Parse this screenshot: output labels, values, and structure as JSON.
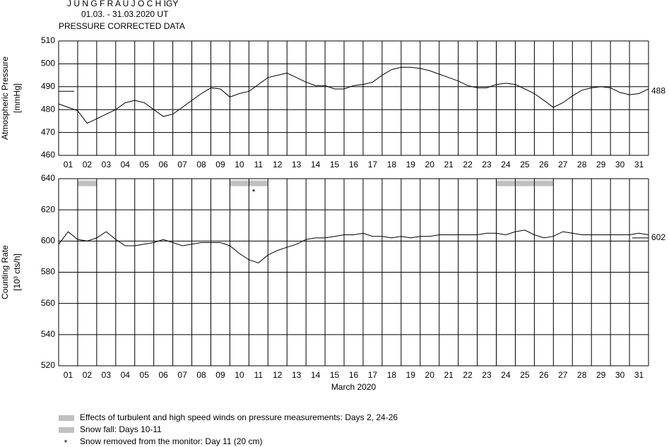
{
  "header": {
    "lines": [
      "J U N G F R A U J O C H  IGY",
      "01.03. - 31.03.2020  UT",
      "PRESSURE CORRECTED DATA"
    ]
  },
  "chart_data": [
    {
      "type": "line",
      "ylabel": [
        "Atmospheric Pressure",
        "[mmHg]"
      ],
      "xlim": [
        1,
        32
      ],
      "xticks": [
        {
          "value": 1,
          "label": "01"
        },
        {
          "value": 2,
          "label": "02"
        },
        {
          "value": 3,
          "label": "03"
        },
        {
          "value": 4,
          "label": "04"
        },
        {
          "value": 5,
          "label": "05"
        },
        {
          "value": 6,
          "label": "06"
        },
        {
          "value": 7,
          "label": "07"
        },
        {
          "value": 8,
          "label": "08"
        },
        {
          "value": 9,
          "label": "09"
        },
        {
          "value": 10,
          "label": "10"
        },
        {
          "value": 11,
          "label": "11"
        },
        {
          "value": 12,
          "label": "12"
        },
        {
          "value": 13,
          "label": "13"
        },
        {
          "value": 14,
          "label": "14"
        },
        {
          "value": 15,
          "label": "15"
        },
        {
          "value": 16,
          "label": "16"
        },
        {
          "value": 17,
          "label": "17"
        },
        {
          "value": 18,
          "label": "18"
        },
        {
          "value": 19,
          "label": "19"
        },
        {
          "value": 20,
          "label": "20"
        },
        {
          "value": 21,
          "label": "21"
        },
        {
          "value": 22,
          "label": "22"
        },
        {
          "value": 23,
          "label": "23"
        },
        {
          "value": 24,
          "label": "24"
        },
        {
          "value": 25,
          "label": "25"
        },
        {
          "value": 26,
          "label": "26"
        },
        {
          "value": 27,
          "label": "27"
        },
        {
          "value": 28,
          "label": "28"
        },
        {
          "value": 29,
          "label": "29"
        },
        {
          "value": 30,
          "label": "30"
        },
        {
          "value": 31,
          "label": "31"
        }
      ],
      "ylim": [
        460,
        510
      ],
      "yticks": [
        460,
        470,
        480,
        490,
        500,
        510
      ],
      "grid": true,
      "reference": {
        "value": 488,
        "side": "left"
      },
      "x": [
        1,
        1.5,
        2,
        2.5,
        3,
        3.5,
        4,
        4.5,
        5,
        5.5,
        6,
        6.5,
        7,
        7.5,
        8,
        8.5,
        9,
        9.5,
        10,
        10.5,
        11,
        11.5,
        12,
        12.5,
        13,
        13.5,
        14,
        14.5,
        15,
        15.5,
        16,
        16.5,
        17,
        17.5,
        18,
        18.5,
        19,
        19.5,
        20,
        20.5,
        21,
        21.5,
        22,
        22.5,
        23,
        23.5,
        24,
        24.5,
        25,
        25.5,
        26,
        26.5,
        27,
        27.5,
        28,
        28.5,
        29,
        29.5,
        30,
        30.5,
        31,
        31.5,
        32
      ],
      "series": [
        {
          "color": "#000000",
          "values": [
            482.5,
            481,
            479.5,
            474,
            476,
            478,
            480,
            483,
            484,
            483,
            480,
            477,
            478,
            481,
            484,
            487,
            489.5,
            489,
            485.5,
            487,
            488,
            491,
            494,
            495,
            496,
            494,
            492,
            490.5,
            490.5,
            489,
            489,
            490.5,
            491,
            492,
            495,
            497.5,
            498.5,
            498.5,
            498,
            497,
            495.5,
            494,
            492.5,
            490.5,
            489.5,
            489.5,
            491,
            491.5,
            491,
            489,
            487,
            484,
            481,
            483,
            486,
            488.5,
            489.5,
            490,
            489.5,
            487.5,
            486.5,
            487,
            489
          ]
        }
      ]
    },
    {
      "type": "line",
      "ylabel": [
        "Counting Rate",
        "[10³ cts/h]"
      ],
      "xlabel": "March 2020",
      "xlim": [
        1,
        32
      ],
      "xticks": [
        {
          "value": 1,
          "label": "01"
        },
        {
          "value": 2,
          "label": "02"
        },
        {
          "value": 3,
          "label": "03"
        },
        {
          "value": 4,
          "label": "04"
        },
        {
          "value": 5,
          "label": "05"
        },
        {
          "value": 6,
          "label": "06"
        },
        {
          "value": 7,
          "label": "07"
        },
        {
          "value": 8,
          "label": "08"
        },
        {
          "value": 9,
          "label": "09"
        },
        {
          "value": 10,
          "label": "10"
        },
        {
          "value": 11,
          "label": "11"
        },
        {
          "value": 12,
          "label": "12"
        },
        {
          "value": 13,
          "label": "13"
        },
        {
          "value": 14,
          "label": "14"
        },
        {
          "value": 15,
          "label": "15"
        },
        {
          "value": 16,
          "label": "16"
        },
        {
          "value": 17,
          "label": "17"
        },
        {
          "value": 18,
          "label": "18"
        },
        {
          "value": 19,
          "label": "19"
        },
        {
          "value": 20,
          "label": "20"
        },
        {
          "value": 21,
          "label": "21"
        },
        {
          "value": 22,
          "label": "22"
        },
        {
          "value": 23,
          "label": "23"
        },
        {
          "value": 24,
          "label": "24"
        },
        {
          "value": 25,
          "label": "25"
        },
        {
          "value": 26,
          "label": "26"
        },
        {
          "value": 27,
          "label": "27"
        },
        {
          "value": 28,
          "label": "28"
        },
        {
          "value": 29,
          "label": "29"
        },
        {
          "value": 30,
          "label": "30"
        },
        {
          "value": 31,
          "label": "31"
        }
      ],
      "ylim": [
        520,
        640
      ],
      "yticks": [
        520,
        540,
        560,
        580,
        600,
        620,
        640
      ],
      "grid": true,
      "reference": {
        "value": 602,
        "side": "right"
      },
      "shaded_periods": [
        {
          "from": 2,
          "to": 3,
          "y": 637,
          "color": "#c0c0c0"
        },
        {
          "from": 10,
          "to": 12,
          "y": 637,
          "color": "#c0c0c0"
        },
        {
          "from": 24,
          "to": 27,
          "y": 637,
          "color": "#c0c0c0"
        }
      ],
      "snow_marker": {
        "x": 11.25,
        "y": 632,
        "symbol": "*"
      },
      "x": [
        1,
        1.5,
        2,
        2.5,
        3,
        3.5,
        4,
        4.5,
        5,
        5.5,
        6,
        6.5,
        7,
        7.5,
        8,
        8.5,
        9,
        9.5,
        10,
        10.5,
        11,
        11.5,
        12,
        12.5,
        13,
        13.5,
        14,
        14.5,
        15,
        15.5,
        16,
        16.5,
        17,
        17.5,
        18,
        18.5,
        19,
        19.5,
        20,
        20.5,
        21,
        21.5,
        22,
        22.5,
        23,
        23.5,
        24,
        24.5,
        25,
        25.5,
        26,
        26.5,
        27,
        27.5,
        28,
        28.5,
        29,
        29.5,
        30,
        30.5,
        31,
        31.5,
        32
      ],
      "series": [
        {
          "color": "#000000",
          "values": [
            598,
            606,
            601,
            600,
            602,
            606,
            601,
            597,
            597,
            598,
            599,
            601,
            599,
            597,
            598,
            599,
            599,
            599,
            597,
            592,
            588,
            586,
            591,
            594,
            596,
            598,
            601,
            602,
            602,
            603,
            604,
            604,
            605,
            603,
            603,
            602,
            603,
            602,
            603,
            603,
            604,
            604,
            604,
            604,
            604,
            605,
            605,
            604,
            606,
            607,
            604,
            602,
            603,
            606,
            605,
            604,
            604,
            604,
            604,
            604,
            604,
            605,
            604
          ]
        }
      ]
    }
  ],
  "legend": [
    {
      "color": "#c0c0c0",
      "label": "Effects of turbulent and high speed winds on pressure measurements: Days 2, 24-26"
    },
    {
      "color": "#c0c0c0",
      "label": "Snow fall: Days 10-11"
    },
    {
      "symbol": "*",
      "label": "Snow removed from the monitor: Day 11 (20 cm)"
    }
  ]
}
